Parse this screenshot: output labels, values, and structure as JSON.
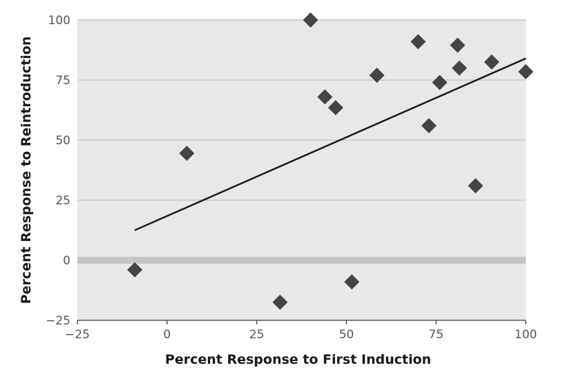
{
  "chart_data": {
    "type": "scatter",
    "title": "",
    "xlabel": "Percent Response to First Induction",
    "ylabel": "Percent Response to Reintroduction",
    "xlim": [
      -25,
      100
    ],
    "ylim": [
      -25,
      100
    ],
    "xticks": [
      -25,
      0,
      25,
      50,
      75,
      100
    ],
    "yticks": [
      -25,
      0,
      25,
      50,
      75,
      100
    ],
    "x_tick_labels": [
      "−25",
      "0",
      "25",
      "50",
      "75",
      "100"
    ],
    "y_tick_labels": [
      "−25",
      "0",
      "25",
      "50",
      "75",
      "100"
    ],
    "grid": true,
    "zero_line": true,
    "legend": "none",
    "series": [
      {
        "marker": "diamond",
        "x": [
          -9,
          5.5,
          31.5,
          40,
          44,
          47,
          51.5,
          58.5,
          70,
          73,
          76,
          81,
          81.5,
          86,
          90.5,
          100
        ],
        "y": [
          -4,
          44.5,
          -17.5,
          100,
          68,
          63.5,
          -9,
          77,
          91,
          56,
          74,
          89.5,
          80,
          31,
          82.5,
          78.5
        ]
      }
    ],
    "trendline": {
      "x": [
        -9,
        100
      ],
      "y": [
        12.5,
        84
      ]
    },
    "colors": {
      "background": "#e8e8e8",
      "grid": "#c8c8c8",
      "zero_line": "#c4c4c4",
      "axis": "#555555",
      "marker": "#444444",
      "trendline": "#1a1a1a"
    }
  }
}
